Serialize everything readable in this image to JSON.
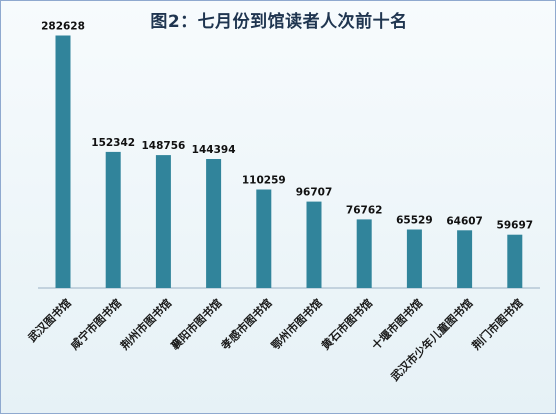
{
  "chart_data": {
    "type": "bar",
    "title": "图2：七月份到馆读者人次前十名",
    "categories": [
      "武汉图书馆",
      "咸宁市图书馆",
      "荆州市图书馆",
      "襄阳市图书馆",
      "孝感市图书馆",
      "鄂州市图书馆",
      "黄石市图书馆",
      "十堰市图书馆",
      "武汉市少年儿童图书馆",
      "荆门市图书馆"
    ],
    "values": [
      282628,
      152342,
      148756,
      144394,
      110259,
      96707,
      76762,
      65529,
      64607,
      59697
    ],
    "xlabel": "",
    "ylabel": "",
    "ylim": [
      0,
      300000
    ],
    "grid": false,
    "legend": "none",
    "bar_color": "#31849b"
  }
}
